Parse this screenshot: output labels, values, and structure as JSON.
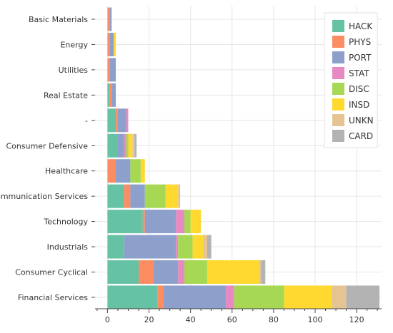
{
  "chart_data": {
    "type": "bar",
    "orientation": "horizontal",
    "stacked": true,
    "categories": [
      "Basic Materials",
      "Energy",
      "Utilities",
      "Real Estate",
      "-",
      "Consumer Defensive",
      "Healthcare",
      "Communication Services",
      "Technology",
      "Industrials",
      "Consumer Cyclical",
      "Financial Services"
    ],
    "series": [
      {
        "name": "HACK",
        "color": "#66c2a5",
        "values": [
          0,
          0,
          0,
          1,
          4,
          5,
          0,
          8,
          17,
          8,
          15,
          24
        ]
      },
      {
        "name": "PHYS",
        "color": "#fc8d62",
        "values": [
          1,
          1,
          1,
          1,
          1,
          0,
          4,
          3,
          1,
          0,
          7,
          3
        ]
      },
      {
        "name": "PORT",
        "color": "#8da0cb",
        "values": [
          1,
          2,
          3,
          2,
          4,
          3,
          7,
          7,
          15,
          25,
          12,
          30
        ]
      },
      {
        "name": "STAT",
        "color": "#e78ac3",
        "values": [
          0,
          0,
          0,
          0,
          1,
          1,
          0,
          0,
          4,
          1,
          3,
          4
        ]
      },
      {
        "name": "DISC",
        "color": "#a6d854",
        "values": [
          0,
          0,
          0,
          0,
          0,
          1,
          5,
          10,
          3,
          7,
          11,
          24
        ]
      },
      {
        "name": "INSD",
        "color": "#ffd92f",
        "values": [
          0,
          1,
          0,
          0,
          0,
          2,
          2,
          6,
          5,
          5,
          25,
          23
        ]
      },
      {
        "name": "UNKN",
        "color": "#e5c494",
        "values": [
          0,
          0,
          0,
          0,
          0,
          1,
          0,
          1,
          0,
          2,
          1,
          7
        ]
      },
      {
        "name": "CARD",
        "color": "#b3b3b3",
        "values": [
          0,
          0,
          0,
          0,
          0,
          1,
          0,
          0,
          0,
          2,
          2,
          16
        ]
      }
    ],
    "xlim": [
      -6,
      132
    ],
    "ticks": [
      0,
      20,
      40,
      60,
      80,
      100,
      120
    ],
    "grid": true,
    "legend_position": "top-right",
    "title": "",
    "xlabel": "",
    "ylabel": ""
  }
}
